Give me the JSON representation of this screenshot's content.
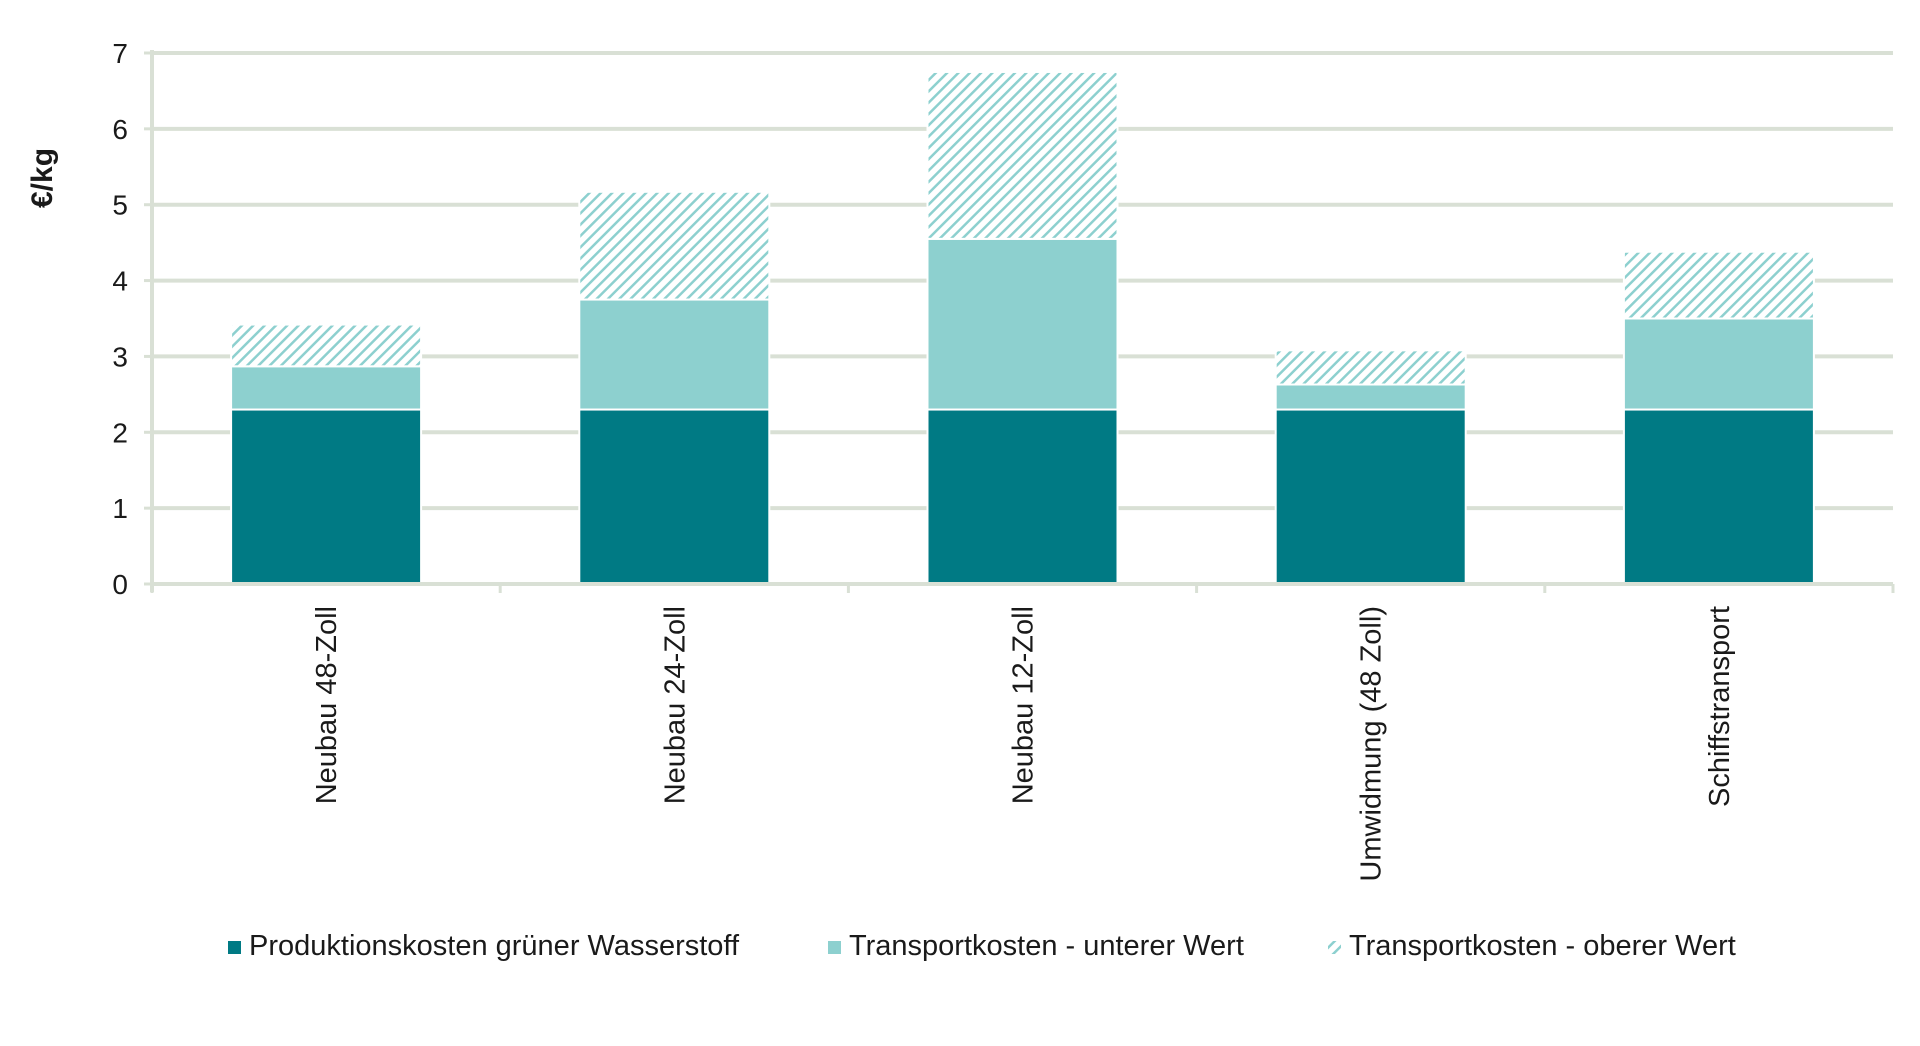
{
  "chart_data": {
    "type": "bar",
    "stacked": true,
    "title": "",
    "xlabel": "",
    "ylabel": "€/kg",
    "ylim": [
      0,
      7
    ],
    "yticks": [
      "0",
      "1",
      "2",
      "3",
      "4",
      "5",
      "6",
      "7"
    ],
    "grid": true,
    "legend_position": "bottom",
    "categories": [
      "Neubau 48-Zoll",
      "Neubau 24-Zoll",
      "Neubau 12-Zoll",
      "Umwidmung (48 Zoll)",
      "Schiffstransport"
    ],
    "series": [
      {
        "name": "Produktionskosten grüner Wasserstoff",
        "values": [
          2.3,
          2.3,
          2.3,
          2.3,
          2.3
        ],
        "color": "#007a84",
        "pattern": "solid"
      },
      {
        "name": "Transportkosten - unterer Wert",
        "values": [
          0.57,
          1.45,
          2.25,
          0.33,
          1.2
        ],
        "color": "#8dd0cf",
        "pattern": "solid"
      },
      {
        "name": "Transportkosten - oberer Wert",
        "values": [
          0.55,
          1.42,
          2.2,
          0.45,
          0.88
        ],
        "color": "#8dd0cf",
        "pattern": "hatched"
      }
    ],
    "colors": {
      "grid": "#d9e0d5",
      "axis": "#d9e0d5",
      "text": "#1a1a1a"
    }
  }
}
